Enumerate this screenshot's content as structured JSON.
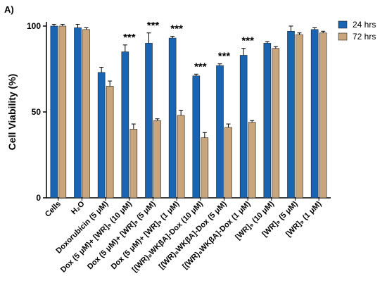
{
  "panel_label": "A)",
  "chart_data": {
    "type": "bar",
    "ylabel": "Cell Viability (%)",
    "ylim": [
      0,
      100
    ],
    "yticks": [
      0,
      50,
      100
    ],
    "legend_position": "top-right",
    "categories": [
      "Cells",
      "H₂O",
      "Doxorubicin (5 μM)",
      "Dox (5 μM)+ [WR]₉ (10 μM)",
      "Dox (5 μM)+ [WR]₉ (5 μM)",
      "Dox (5 μM)+ [WR]₉ (1 μM)",
      "[(WR)₈WKβA]-Dox (10 μM)",
      "[(WR)₈WKβA]-Dox (5 μM)",
      "[(WR)₈WKβA]-Dox (1 μM)",
      "[WR]₉ (10 μM)",
      "[WR]₉ (5 μM)",
      "[WR]₉ (1 μM)"
    ],
    "series": [
      {
        "name": "24 hrs",
        "color": "#1a64b4",
        "values": [
          100,
          99,
          73,
          85,
          90,
          93,
          71,
          77,
          83,
          90,
          97,
          98
        ],
        "errors": [
          1,
          2,
          3,
          4,
          6,
          1,
          1,
          1,
          4,
          1,
          3,
          1
        ]
      },
      {
        "name": "72 hrs",
        "color": "#c8a57a",
        "values": [
          100,
          98,
          65,
          40,
          45,
          48,
          35,
          41,
          44,
          87,
          95,
          96
        ],
        "errors": [
          1,
          1,
          3,
          3,
          1,
          3,
          3,
          2,
          1,
          1,
          1,
          1
        ]
      }
    ],
    "annotations": [
      "",
      "",
      "",
      "***",
      "***",
      "***",
      "***",
      "***",
      "***",
      "",
      "",
      ""
    ]
  }
}
